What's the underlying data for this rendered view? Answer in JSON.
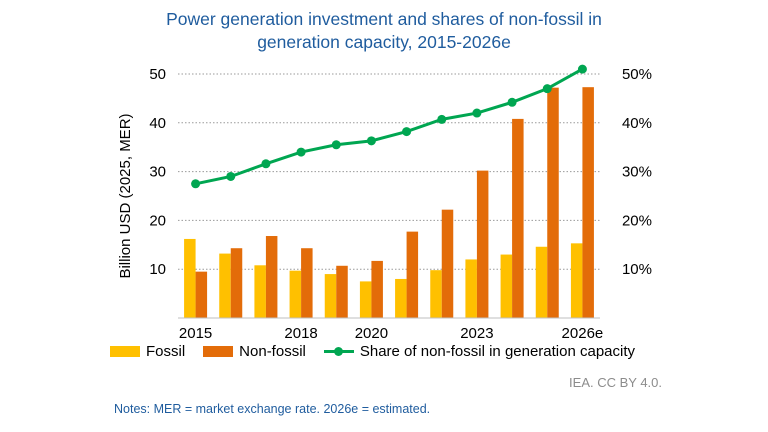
{
  "title_line1": "Power generation investment and shares of non-fossil in",
  "title_line2": "generation capacity, 2015-2026e",
  "chart_data": {
    "type": "bar",
    "categories": [
      "2015",
      "2016",
      "2017",
      "2018",
      "2019",
      "2020",
      "2021",
      "2022",
      "2023",
      "2024",
      "2025",
      "2026e"
    ],
    "x_tick_labels": [
      "2015",
      "",
      "",
      "2018",
      "",
      "2020",
      "",
      "",
      "2023",
      "",
      "",
      "2026e"
    ],
    "series": [
      {
        "name": "Fossil",
        "type": "bar",
        "axis": "left",
        "color": "#ffc000",
        "values": [
          16.2,
          13.2,
          10.8,
          9.7,
          9.0,
          7.5,
          8.0,
          9.8,
          12.0,
          13.0,
          14.6,
          15.3
        ]
      },
      {
        "name": "Non-fossil",
        "type": "bar",
        "axis": "left",
        "color": "#e36c09",
        "values": [
          9.5,
          14.3,
          16.8,
          14.3,
          10.7,
          11.7,
          17.7,
          22.2,
          30.2,
          40.8,
          47.2,
          47.3
        ]
      },
      {
        "name": "Share of non-fossil in generation capacity",
        "type": "line",
        "axis": "right",
        "color": "#00a651",
        "values": [
          27.5,
          29.0,
          31.6,
          34.0,
          35.5,
          36.3,
          38.2,
          40.7,
          42.0,
          44.2,
          47.0,
          51.0
        ]
      }
    ],
    "ylabel": "Billion USD (2025, MER)",
    "ylim": [
      0,
      50
    ],
    "y_ticks": [
      "10",
      "20",
      "30",
      "40",
      "50"
    ],
    "y2lim": [
      0,
      50
    ],
    "y2_ticks": [
      "10%",
      "20%",
      "30%",
      "40%",
      "50%"
    ],
    "grid": true,
    "legend_position": "bottom"
  },
  "legend": {
    "fossil": "Fossil",
    "nonfossil": "Non-fossil",
    "share": "Share of non-fossil in generation capacity"
  },
  "source": "IEA. CC BY 4.0.",
  "notes": "Notes: MER = market exchange rate. 2026e = estimated."
}
